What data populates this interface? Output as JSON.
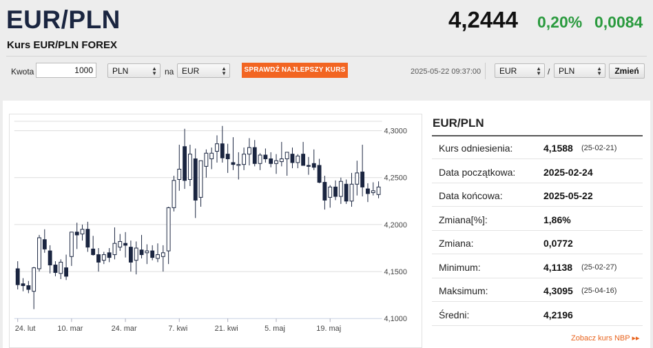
{
  "header": {
    "title": "EUR/PLN",
    "subtitle": "Kurs EUR/PLN FOREX",
    "rate": "4,2444",
    "change_pct": "0,20%",
    "change_abs": "0,0084"
  },
  "converter": {
    "amount_label": "Kwota",
    "amount_value": "1000",
    "from_currency": "PLN",
    "to_label": "na",
    "to_currency": "EUR",
    "check_button": "SPRAWDŹ NAJLEPSZY KURS",
    "timestamp": "2025-05-22 09:37:00",
    "pair_base": "EUR",
    "pair_sep": "/",
    "pair_quote": "PLN",
    "change_button": "Zmień"
  },
  "colors": {
    "accent_orange": "#f26522",
    "positive_green": "#2a9a3e",
    "title_navy": "#1a2540",
    "candle_dark": "#1a2540"
  },
  "stats": {
    "title": "EUR/PLN",
    "rows": [
      {
        "label": "Kurs odniesienia:",
        "value": "4,1588",
        "date": "(25-02-21)"
      },
      {
        "label": "Data początkowa:",
        "value": "2025-02-24",
        "date": ""
      },
      {
        "label": "Data końcowa:",
        "value": "2025-05-22",
        "date": ""
      },
      {
        "label": "Zmiana[%]:",
        "value": "1,86%",
        "date": ""
      },
      {
        "label": "Zmiana:",
        "value": "0,0772",
        "date": ""
      },
      {
        "label": "Minimum:",
        "value": "4,1138",
        "date": "(25-02-27)"
      },
      {
        "label": "Maksimum:",
        "value": "4,3095",
        "date": "(25-04-16)"
      },
      {
        "label": "Średni:",
        "value": "4,2196",
        "date": ""
      }
    ],
    "nbp_link": "Zobacz kurs NBP ▸▸"
  },
  "chart_data": {
    "type": "candlestick",
    "ylim": [
      4.1,
      4.31
    ],
    "y_ticks": [
      4.1,
      4.15,
      4.2,
      4.25,
      4.3
    ],
    "y_tick_labels": [
      "4,1000",
      "4,1500",
      "4,2000",
      "4,2500",
      "4,3000"
    ],
    "x_ticks": [
      {
        "index": 0,
        "label": "24. lut"
      },
      {
        "index": 10,
        "label": "10. mar"
      },
      {
        "index": 20,
        "label": "24. mar"
      },
      {
        "index": 30,
        "label": "7. kwi"
      },
      {
        "index": 39,
        "label": "21. kwi"
      },
      {
        "index": 48,
        "label": "5. maj"
      },
      {
        "index": 58,
        "label": "19. maj"
      }
    ],
    "grid": true,
    "candles": [
      [
        4.153,
        4.161,
        4.131,
        4.136
      ],
      [
        4.137,
        4.143,
        4.129,
        4.135
      ],
      [
        4.135,
        4.14,
        4.127,
        4.131
      ],
      [
        4.129,
        4.155,
        4.11,
        4.154
      ],
      [
        4.153,
        4.189,
        4.15,
        4.186
      ],
      [
        4.184,
        4.195,
        4.17,
        4.174
      ],
      [
        4.172,
        4.178,
        4.148,
        4.157
      ],
      [
        4.157,
        4.161,
        4.145,
        4.149
      ],
      [
        4.148,
        4.163,
        4.142,
        4.16
      ],
      [
        4.154,
        4.168,
        4.141,
        4.145
      ],
      [
        4.166,
        4.192,
        4.156,
        4.192
      ],
      [
        4.192,
        4.202,
        4.174,
        4.189
      ],
      [
        4.19,
        4.2,
        4.183,
        4.195
      ],
      [
        4.195,
        4.203,
        4.171,
        4.176
      ],
      [
        4.174,
        4.188,
        4.167,
        4.168
      ],
      [
        4.168,
        4.175,
        4.15,
        4.16
      ],
      [
        4.162,
        4.171,
        4.158,
        4.168
      ],
      [
        4.17,
        4.175,
        4.16,
        4.165
      ],
      [
        4.168,
        4.197,
        4.163,
        4.18
      ],
      [
        4.176,
        4.19,
        4.172,
        4.182
      ],
      [
        4.18,
        4.192,
        4.165,
        4.178
      ],
      [
        4.176,
        4.183,
        4.15,
        4.16
      ],
      [
        4.162,
        4.182,
        4.147,
        4.175
      ],
      [
        4.173,
        4.189,
        4.164,
        4.168
      ],
      [
        4.17,
        4.179,
        4.158,
        4.172
      ],
      [
        4.172,
        4.178,
        4.162,
        4.165
      ],
      [
        4.164,
        4.18,
        4.16,
        4.168
      ],
      [
        4.166,
        4.178,
        4.15,
        4.17
      ],
      [
        4.172,
        4.219,
        4.158,
        4.218
      ],
      [
        4.218,
        4.252,
        4.214,
        4.247
      ],
      [
        4.248,
        4.285,
        4.236,
        4.259
      ],
      [
        4.283,
        4.302,
        4.238,
        4.247
      ],
      [
        4.248,
        4.285,
        4.241,
        4.275
      ],
      [
        4.27,
        4.281,
        4.207,
        4.226
      ],
      [
        4.229,
        4.268,
        4.219,
        4.268
      ],
      [
        4.262,
        4.28,
        4.25,
        4.276
      ],
      [
        4.27,
        4.282,
        4.259,
        4.276
      ],
      [
        4.278,
        4.295,
        4.266,
        4.286
      ],
      [
        4.286,
        4.305,
        4.266,
        4.271
      ],
      [
        4.275,
        4.286,
        4.255,
        4.27
      ],
      [
        4.266,
        4.293,
        4.258,
        4.264
      ],
      [
        4.263,
        4.277,
        4.248,
        4.264
      ],
      [
        4.264,
        4.282,
        4.258,
        4.275
      ],
      [
        4.275,
        4.292,
        4.263,
        4.282
      ],
      [
        4.282,
        4.29,
        4.262,
        4.265
      ],
      [
        4.265,
        4.276,
        4.258,
        4.274
      ],
      [
        4.274,
        4.281,
        4.266,
        4.27
      ],
      [
        4.27,
        4.277,
        4.261,
        4.265
      ],
      [
        4.265,
        4.275,
        4.254,
        4.268
      ],
      [
        4.267,
        4.288,
        4.262,
        4.27
      ],
      [
        4.27,
        4.277,
        4.252,
        4.277
      ],
      [
        4.275,
        4.282,
        4.26,
        4.266
      ],
      [
        4.266,
        4.275,
        4.26,
        4.273
      ],
      [
        4.275,
        4.288,
        4.264,
        4.263
      ],
      [
        4.263,
        4.272,
        4.253,
        4.262
      ],
      [
        4.265,
        4.28,
        4.258,
        4.261
      ],
      [
        4.263,
        4.27,
        4.244,
        4.245
      ],
      [
        4.245,
        4.252,
        4.216,
        4.226
      ],
      [
        4.229,
        4.242,
        4.218,
        4.24
      ],
      [
        4.24,
        4.247,
        4.226,
        4.23
      ],
      [
        4.23,
        4.25,
        4.222,
        4.246
      ],
      [
        4.243,
        4.248,
        4.222,
        4.225
      ],
      [
        4.225,
        4.255,
        4.219,
        4.243
      ],
      [
        4.243,
        4.268,
        4.231,
        4.255
      ],
      [
        4.256,
        4.285,
        4.23,
        4.24
      ],
      [
        4.238,
        4.244,
        4.224,
        4.233
      ],
      [
        4.234,
        4.245,
        4.231,
        4.236
      ],
      [
        4.232,
        4.246,
        4.228,
        4.24
      ]
    ]
  }
}
